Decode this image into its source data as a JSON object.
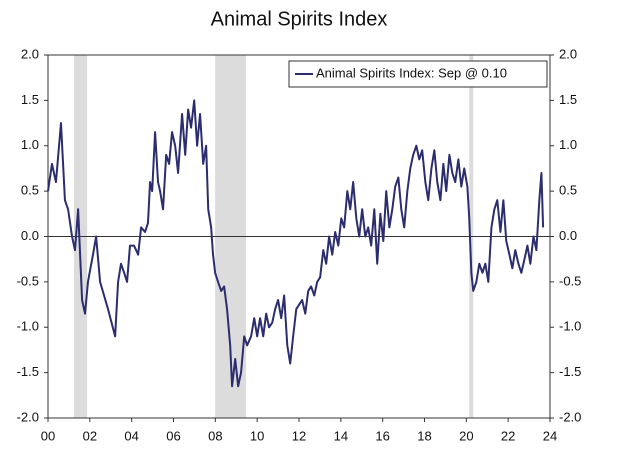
{
  "chart_data": {
    "type": "line",
    "title": "Animal Spirits Index",
    "series": [
      {
        "name": "Animal Spirits Index: Sep @ 0.10",
        "color": "#2b2d6e",
        "x": [
          2000.0,
          2000.19,
          2000.38,
          2000.62,
          2000.81,
          2000.96,
          2001.15,
          2001.29,
          2001.44,
          2001.63,
          2001.77,
          2001.91,
          2002.15,
          2002.3,
          2002.49,
          2002.87,
          2003.21,
          2003.35,
          2003.49,
          2003.64,
          2003.78,
          2003.92,
          2004.11,
          2004.31,
          2004.45,
          2004.64,
          2004.78,
          2004.88,
          2004.98,
          2005.12,
          2005.26,
          2005.36,
          2005.5,
          2005.65,
          2005.79,
          2005.93,
          2006.08,
          2006.22,
          2006.41,
          2006.56,
          2006.7,
          2006.84,
          2006.99,
          2007.13,
          2007.27,
          2007.42,
          2007.56,
          2007.66,
          2007.8,
          2007.89,
          2007.99,
          2008.13,
          2008.28,
          2008.42,
          2008.56,
          2008.71,
          2008.8,
          2008.95,
          2009.09,
          2009.23,
          2009.38,
          2009.52,
          2009.71,
          2009.86,
          2010.0,
          2010.14,
          2010.29,
          2010.43,
          2010.57,
          2010.72,
          2010.86,
          2011.0,
          2011.15,
          2011.29,
          2011.44,
          2011.58,
          2011.72,
          2011.87,
          2012.01,
          2012.15,
          2012.3,
          2012.44,
          2012.58,
          2012.73,
          2012.87,
          2013.01,
          2013.16,
          2013.3,
          2013.44,
          2013.59,
          2013.73,
          2013.88,
          2014.02,
          2014.16,
          2014.31,
          2014.45,
          2014.59,
          2014.74,
          2014.88,
          2015.02,
          2015.17,
          2015.31,
          2015.45,
          2015.6,
          2015.74,
          2015.89,
          2016.03,
          2016.17,
          2016.32,
          2016.46,
          2016.6,
          2016.75,
          2016.89,
          2017.03,
          2017.18,
          2017.32,
          2017.46,
          2017.61,
          2017.75,
          2017.89,
          2018.04,
          2018.18,
          2018.33,
          2018.47,
          2018.61,
          2018.76,
          2018.9,
          2019.04,
          2019.19,
          2019.33,
          2019.47,
          2019.62,
          2019.76,
          2019.9,
          2020.05,
          2020.14,
          2020.24,
          2020.33,
          2020.48,
          2020.62,
          2020.77,
          2020.91,
          2021.05,
          2021.2,
          2021.34,
          2021.48,
          2021.63,
          2021.77,
          2021.91,
          2022.06,
          2022.2,
          2022.34,
          2022.49,
          2022.63,
          2022.78,
          2022.92,
          2023.06,
          2023.21,
          2023.35,
          2023.49,
          2023.59,
          2023.67
        ],
        "values": [
          0.5,
          0.8,
          0.6,
          1.25,
          0.4,
          0.3,
          0.0,
          -0.15,
          0.3,
          -0.7,
          -0.85,
          -0.5,
          -0.2,
          0.0,
          -0.5,
          -0.8,
          -1.1,
          -0.5,
          -0.3,
          -0.4,
          -0.5,
          -0.1,
          -0.1,
          -0.2,
          0.1,
          0.05,
          0.15,
          0.6,
          0.5,
          1.15,
          0.6,
          0.5,
          0.3,
          0.9,
          0.8,
          1.15,
          1.0,
          0.7,
          1.35,
          0.9,
          1.4,
          1.2,
          1.5,
          1.0,
          1.35,
          0.8,
          1.0,
          0.3,
          0.1,
          -0.2,
          -0.4,
          -0.5,
          -0.6,
          -0.55,
          -0.8,
          -1.2,
          -1.65,
          -1.35,
          -1.65,
          -1.5,
          -1.1,
          -1.2,
          -1.1,
          -0.9,
          -1.1,
          -0.9,
          -1.1,
          -0.85,
          -1.0,
          -0.95,
          -0.8,
          -0.7,
          -0.9,
          -0.65,
          -1.2,
          -1.4,
          -1.1,
          -0.8,
          -0.75,
          -0.7,
          -0.85,
          -0.6,
          -0.55,
          -0.65,
          -0.5,
          -0.45,
          -0.15,
          -0.3,
          0.0,
          -0.2,
          0.05,
          -0.1,
          0.2,
          0.1,
          0.5,
          0.3,
          0.6,
          0.2,
          0.0,
          0.3,
          0.0,
          0.1,
          -0.1,
          0.3,
          -0.3,
          0.25,
          -0.05,
          0.5,
          0.1,
          0.3,
          0.55,
          0.65,
          0.3,
          0.1,
          0.5,
          0.75,
          0.9,
          1.0,
          0.85,
          0.95,
          0.6,
          0.4,
          0.75,
          0.95,
          0.6,
          0.4,
          0.8,
          0.5,
          0.9,
          0.7,
          0.6,
          0.85,
          0.55,
          0.75,
          0.55,
          0.2,
          -0.4,
          -0.6,
          -0.5,
          -0.3,
          -0.4,
          -0.3,
          -0.5,
          0.1,
          0.3,
          0.4,
          0.05,
          0.4,
          -0.05,
          -0.2,
          -0.35,
          -0.15,
          -0.3,
          -0.4,
          -0.25,
          -0.1,
          -0.3,
          0.0,
          -0.15,
          0.4,
          0.7,
          0.1
        ]
      }
    ],
    "recessions": [
      [
        2001.24,
        2001.87
      ],
      [
        2007.99,
        2009.47
      ],
      [
        2020.14,
        2020.33
      ]
    ],
    "recession_color": "#dcdcdc",
    "xlim": [
      2000,
      2024
    ],
    "xticks": [
      {
        "value": 2000,
        "label": "00"
      },
      {
        "value": 2002,
        "label": "02"
      },
      {
        "value": 2004,
        "label": "04"
      },
      {
        "value": 2006,
        "label": "06"
      },
      {
        "value": 2008,
        "label": "08"
      },
      {
        "value": 2010,
        "label": "10"
      },
      {
        "value": 2012,
        "label": "12"
      },
      {
        "value": 2014,
        "label": "14"
      },
      {
        "value": 2016,
        "label": "16"
      },
      {
        "value": 2018,
        "label": "18"
      },
      {
        "value": 2020,
        "label": "20"
      },
      {
        "value": 2022,
        "label": "22"
      },
      {
        "value": 2024,
        "label": "24"
      }
    ],
    "ylim": [
      -2,
      2
    ],
    "yticks": [
      {
        "value": 2,
        "label": "2.0"
      },
      {
        "value": 1.5,
        "label": "1.5"
      },
      {
        "value": 1,
        "label": "1.0"
      },
      {
        "value": 0.5,
        "label": "0.5"
      },
      {
        "value": 0,
        "label": "0.0"
      },
      {
        "value": -0.5,
        "label": "-0.5"
      },
      {
        "value": -1,
        "label": "-1.0"
      },
      {
        "value": -1.5,
        "label": "-1.5"
      },
      {
        "value": -2,
        "label": "-2.0"
      }
    ],
    "y2lim": [
      -2,
      2
    ],
    "y2ticks": [
      {
        "value": 2,
        "label": "2.0"
      },
      {
        "value": 1.5,
        "label": "1.5"
      },
      {
        "value": 1,
        "label": "1.0"
      },
      {
        "value": 0.5,
        "label": "0.5"
      },
      {
        "value": 0,
        "label": "0.0"
      },
      {
        "value": -0.5,
        "label": "-0.5"
      },
      {
        "value": -1,
        "label": "-1.0"
      },
      {
        "value": -1.5,
        "label": "-1.5"
      },
      {
        "value": -2,
        "label": "-2.0"
      }
    ],
    "grid": false,
    "legend": "upper right"
  }
}
